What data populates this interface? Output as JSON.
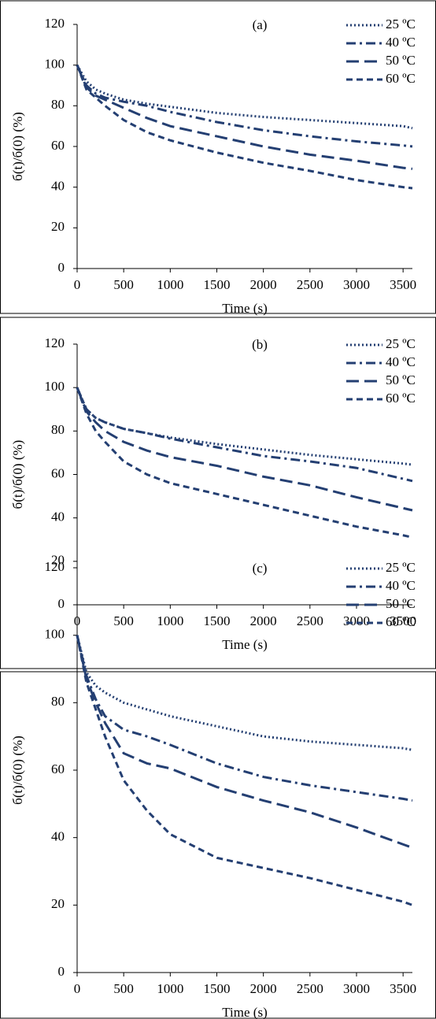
{
  "chart_data": [
    {
      "type": "line",
      "title": "(a)",
      "xlabel": "Time (s)",
      "ylabel": "б(t)/б(0) (%)",
      "x": [
        0,
        100,
        200,
        300,
        500,
        750,
        1000,
        1500,
        2000,
        2500,
        3000,
        3500,
        3600
      ],
      "xlim": [
        0,
        3600
      ],
      "xticks": [
        0,
        500,
        1000,
        1500,
        2000,
        2500,
        3000,
        3500
      ],
      "ylim": [
        0,
        120
      ],
      "yticks": [
        0,
        20,
        40,
        60,
        80,
        100,
        120
      ],
      "grid": false,
      "legend": "top-right",
      "series": [
        {
          "name": "25 ºC",
          "color": "#243f72",
          "line_style": "dotted",
          "values": [
            100,
            92,
            88,
            86,
            83,
            81,
            79.5,
            76.5,
            74.5,
            73,
            71.5,
            70,
            69
          ]
        },
        {
          "name": "40 ºC",
          "color": "#243f72",
          "line_style": "dash-dot",
          "values": [
            100,
            90,
            86,
            84,
            82,
            80,
            77,
            72,
            68,
            65,
            62.5,
            60.5,
            60
          ]
        },
        {
          "name": "50 ºC",
          "color": "#243f72",
          "line_style": "long-dash",
          "values": [
            100,
            89,
            85,
            83,
            79,
            74,
            70,
            65,
            60,
            56,
            53,
            49.5,
            49
          ]
        },
        {
          "name": "60 ºC",
          "color": "#243f72",
          "line_style": "dash",
          "values": [
            100,
            88,
            84,
            80,
            73,
            67,
            63,
            57,
            52,
            48,
            43.5,
            40,
            39.5
          ]
        }
      ]
    },
    {
      "type": "line",
      "title": "(b)",
      "xlabel": "Time (s)",
      "ylabel": "б(t)/б(0) (%)",
      "x": [
        0,
        100,
        200,
        300,
        500,
        750,
        1000,
        1500,
        2000,
        2500,
        3000,
        3500,
        3600
      ],
      "xlim": [
        0,
        3600
      ],
      "xticks": [
        0,
        500,
        1000,
        1500,
        2000,
        2500,
        3000,
        3500
      ],
      "ylim": [
        0,
        120
      ],
      "yticks": [
        0,
        20,
        40,
        60,
        80,
        100,
        120
      ],
      "grid": false,
      "legend": "top-right",
      "series": [
        {
          "name": "25 ºC",
          "color": "#243f72",
          "line_style": "dotted",
          "values": [
            100,
            90,
            86,
            84,
            81,
            79,
            77,
            74,
            71.5,
            69,
            67,
            65,
            64.5
          ]
        },
        {
          "name": "40 ºC",
          "color": "#243f72",
          "line_style": "dash-dot",
          "values": [
            100,
            90,
            86,
            84,
            81,
            79,
            76.5,
            72.5,
            68.5,
            66,
            63,
            58,
            57
          ]
        },
        {
          "name": "50 ºC",
          "color": "#243f72",
          "line_style": "long-dash",
          "values": [
            100,
            89,
            84,
            80,
            75,
            71,
            68,
            64,
            59,
            55,
            49.5,
            44.5,
            43.5
          ]
        },
        {
          "name": "60 ºC",
          "color": "#243f72",
          "line_style": "dash",
          "values": [
            100,
            88,
            80,
            75,
            66,
            60,
            56,
            51,
            46,
            41,
            36,
            32,
            31
          ]
        }
      ]
    },
    {
      "type": "line",
      "title": "(c)",
      "xlabel": "Time (s)",
      "ylabel": "б(t)/б(0) (%)",
      "x": [
        0,
        100,
        200,
        300,
        500,
        750,
        1000,
        1500,
        2000,
        2500,
        3000,
        3500,
        3600
      ],
      "xlim": [
        0,
        3600
      ],
      "xticks": [
        0,
        500,
        1000,
        1500,
        2000,
        2500,
        3000,
        3500
      ],
      "ylim": [
        0,
        120
      ],
      "yticks": [
        0,
        20,
        40,
        60,
        80,
        100,
        120
      ],
      "grid": false,
      "legend": "top-right",
      "series": [
        {
          "name": "25 ºC",
          "color": "#243f72",
          "line_style": "dotted",
          "values": [
            100,
            89,
            85,
            83,
            80,
            78,
            76,
            73,
            70,
            68.5,
            67.5,
            66.5,
            66
          ]
        },
        {
          "name": "40 ºC",
          "color": "#243f72",
          "line_style": "dash-dot",
          "values": [
            100,
            88,
            81,
            76,
            72,
            70,
            67.5,
            62,
            58,
            55.5,
            53.5,
            51.5,
            51
          ]
        },
        {
          "name": "50 ºC",
          "color": "#243f72",
          "line_style": "long-dash",
          "values": [
            100,
            87,
            80,
            74,
            65,
            62,
            60.5,
            55,
            51,
            47.5,
            43,
            38,
            37
          ]
        },
        {
          "name": "60 ºC",
          "color": "#243f72",
          "line_style": "dash",
          "values": [
            100,
            86,
            78,
            70,
            57,
            48,
            41,
            34,
            31,
            28,
            24.5,
            21,
            20
          ]
        }
      ]
    }
  ]
}
